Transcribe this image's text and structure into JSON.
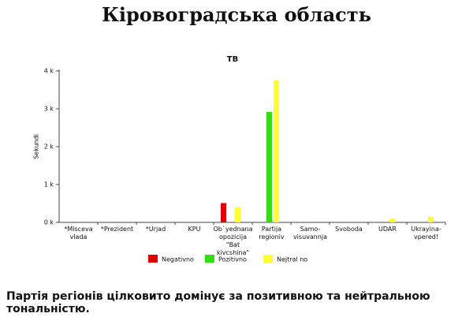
{
  "header": {
    "title": "Кіровоградська область"
  },
  "chart_data": {
    "type": "bar",
    "title": "ТВ",
    "y_label": "Sekundi",
    "categories": [
      "*Misceva\nvlada",
      "*Prezident",
      "*Urjad",
      "KPU",
      "Ob`yednana\nopozicija\n\"Bat kivcshina\"",
      "Partija\nregioniv",
      "Samo-\nvisuvannja",
      "Svoboda",
      "UDAR",
      "Ukrayina-\nvpered!"
    ],
    "series": [
      {
        "name": "Negativno",
        "color": "#e00000",
        "values": [
          0,
          0,
          0,
          0,
          510,
          0,
          0,
          0,
          0,
          0
        ]
      },
      {
        "name": "Pozitivno",
        "color": "#33dd11",
        "values": [
          0,
          0,
          0,
          0,
          0,
          2920,
          0,
          0,
          0,
          0
        ]
      },
      {
        "name": "Nejtral no",
        "color": "#ffff33",
        "values": [
          0,
          0,
          0,
          0,
          400,
          3750,
          0,
          0,
          100,
          150
        ]
      }
    ],
    "ylim": [
      0,
      4000
    ],
    "yticks": [
      {
        "value": 0,
        "label": "0 k"
      },
      {
        "value": 1000,
        "label": "1 k"
      },
      {
        "value": 2000,
        "label": "2 k"
      },
      {
        "value": 3000,
        "label": "3 k"
      },
      {
        "value": 4000,
        "label": "4 k"
      }
    ]
  },
  "footer": {
    "text": "Партія регіонів цілковито домінує за позитивною та нейтральною тональністю."
  }
}
